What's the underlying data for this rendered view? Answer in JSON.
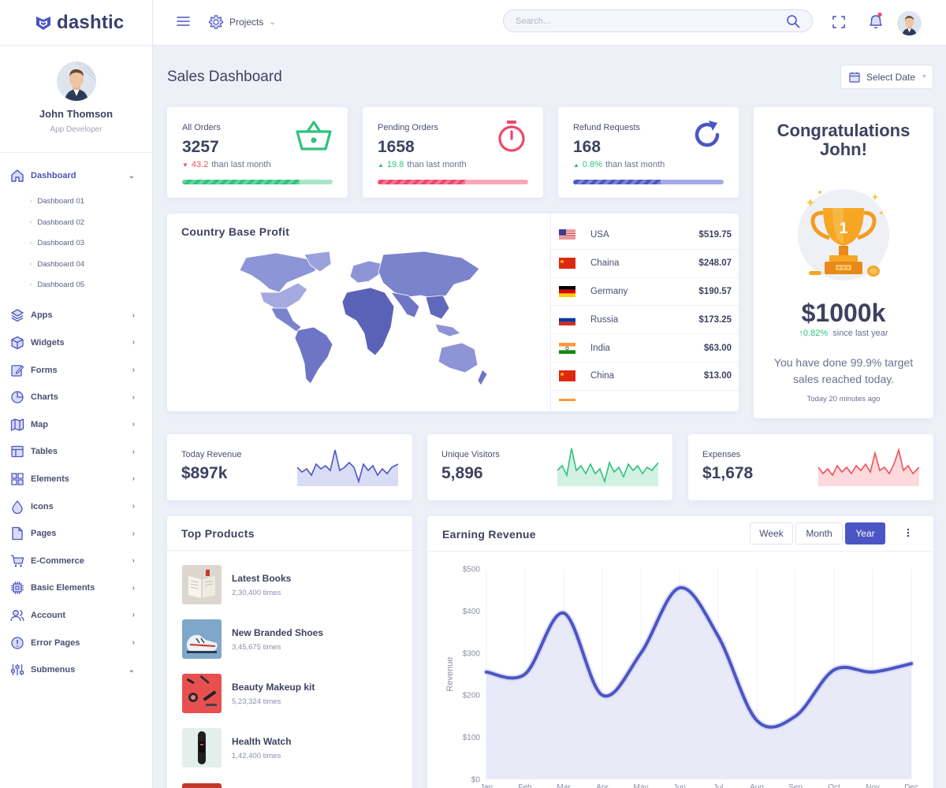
{
  "app": {
    "name": "dashtic"
  },
  "profile": {
    "name": "John Thomson",
    "role": "App Developer"
  },
  "sidebar": {
    "items": [
      {
        "label": "Dashboard",
        "icon": "home-icon",
        "expanded": true
      },
      {
        "label": "Apps",
        "icon": "layers-icon"
      },
      {
        "label": "Widgets",
        "icon": "cube-icon"
      },
      {
        "label": "Forms",
        "icon": "edit-icon"
      },
      {
        "label": "Charts",
        "icon": "pie-chart-icon"
      },
      {
        "label": "Map",
        "icon": "map-icon"
      },
      {
        "label": "Tables",
        "icon": "table-icon"
      },
      {
        "label": "Elements",
        "icon": "grid-icon"
      },
      {
        "label": "Icons",
        "icon": "droplet-icon"
      },
      {
        "label": "Pages",
        "icon": "file-icon"
      },
      {
        "label": "E-Commerce",
        "icon": "cart-icon"
      },
      {
        "label": "Basic Elements",
        "icon": "chip-icon"
      },
      {
        "label": "Account",
        "icon": "users-icon"
      },
      {
        "label": "Error Pages",
        "icon": "alert-icon"
      },
      {
        "label": "Submenus",
        "icon": "sliders-icon",
        "expanded": true
      }
    ],
    "dashboard_sub": [
      "Dashboard 01",
      "Dashboard 02",
      "Dashboard 03",
      "Dashboard 04",
      "Dashboard 05"
    ]
  },
  "topbar": {
    "projects_label": "Projects",
    "search_placeholder": "Search..."
  },
  "page": {
    "title": "Sales Dashboard",
    "select_date": "Select Date"
  },
  "stats": [
    {
      "label": "All Orders",
      "value": "3257",
      "change": "43.2",
      "trend": "down",
      "suffix": "than last month",
      "progress": 0.78,
      "color": "#2ec37d",
      "track": "#a8e6c7",
      "icon": "basket-icon"
    },
    {
      "label": "Pending Orders",
      "value": "1658",
      "change": "19.8",
      "trend": "up",
      "suffix": "than last month",
      "progress": 0.58,
      "color": "#f0466b",
      "track": "#f9a8ba",
      "icon": "stopwatch-icon"
    },
    {
      "label": "Refund Requests",
      "value": "168",
      "change": "0.8%",
      "trend": "up",
      "suffix": "than last month",
      "progress": 0.58,
      "color": "#4b55c4",
      "track": "#a5aae6",
      "icon": "refresh-icon"
    }
  ],
  "country_profit": {
    "title": "Country Base Profit",
    "rows": [
      {
        "country": "USA",
        "value": "$519.75",
        "flag": "us"
      },
      {
        "country": "Chaina",
        "value": "$248.07",
        "flag": "cn"
      },
      {
        "country": "Germany",
        "value": "$190.57",
        "flag": "de"
      },
      {
        "country": "Russia",
        "value": "$173.25",
        "flag": "ru"
      },
      {
        "country": "India",
        "value": "$63.00",
        "flag": "in"
      },
      {
        "country": "China",
        "value": "$13.00",
        "flag": "cn"
      }
    ]
  },
  "congrats": {
    "title": "Congratulations John!",
    "amount": "$1000k",
    "growth": "0.82%",
    "growth_suffix": "since last year",
    "message": "You have done 99.9% target sales reached today.",
    "time": "Today 20 minutes ago"
  },
  "mini_stats": [
    {
      "label": "Today Revenue",
      "value": "$897k",
      "color": "#4b55c4",
      "fill": "#d9dcf5"
    },
    {
      "label": "Unique Visitors",
      "value": "5,896",
      "color": "#2ec37d",
      "fill": "#d3f1e2"
    },
    {
      "label": "Expenses",
      "value": "$1,678",
      "color": "#f0505a",
      "fill": "#fbd9dc"
    }
  ],
  "top_products": {
    "title": "Top Products",
    "items": [
      {
        "name": "Latest Books",
        "count": "2,30,400 times"
      },
      {
        "name": "New Branded Shoes",
        "count": "3,45,675 times"
      },
      {
        "name": "Beauty Makeup kit",
        "count": "5,23,324 times"
      },
      {
        "name": "Health Watch",
        "count": "1,42,400 times"
      }
    ]
  },
  "earning": {
    "title": "Earning Revenue",
    "tabs": [
      "Week",
      "Month",
      "Year"
    ],
    "active_tab": "Year"
  },
  "chart_data": {
    "type": "area",
    "title": "Earning Revenue",
    "ylabel": "Revenue",
    "xlabel": "",
    "categories": [
      "Jan",
      "Feb",
      "Mar",
      "Apr",
      "May",
      "Jun",
      "Jul",
      "Aug",
      "Sep",
      "Oct",
      "Nov",
      "Dec"
    ],
    "values": [
      255,
      250,
      395,
      200,
      300,
      455,
      340,
      140,
      150,
      260,
      255,
      275
    ],
    "yticks": [
      "$0",
      "$100",
      "$200",
      "$300",
      "$400",
      "$500"
    ],
    "ylim": [
      0,
      500
    ],
    "color": "#4b55c4",
    "grid": true
  }
}
